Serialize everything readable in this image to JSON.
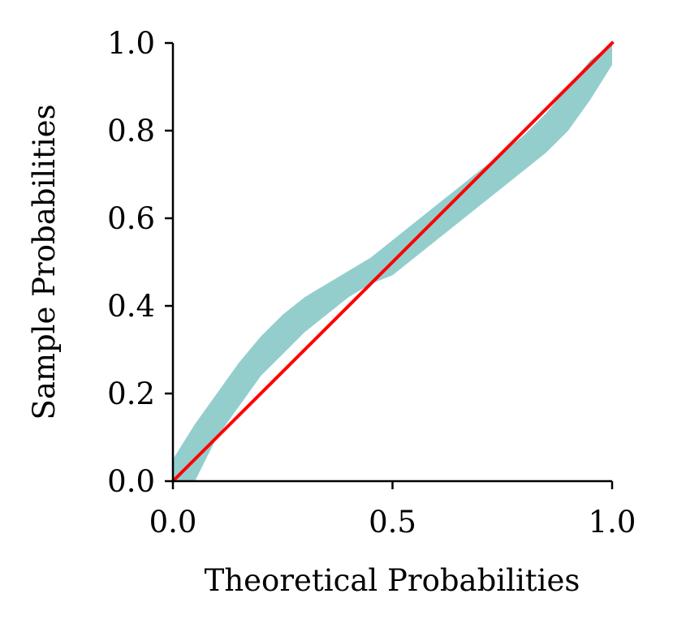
{
  "chart_data": {
    "type": "area",
    "xlabel": "Theoretical Probabilities",
    "ylabel": "Sample Probabilities",
    "xlim": [
      0.0,
      1.0
    ],
    "ylim": [
      0.0,
      1.0
    ],
    "xticks": [
      {
        "value": 0.0,
        "label": "0.0"
      },
      {
        "value": 0.5,
        "label": "0.5"
      },
      {
        "value": 1.0,
        "label": "1.0"
      }
    ],
    "yticks": [
      {
        "value": 0.0,
        "label": "0.0"
      },
      {
        "value": 0.2,
        "label": "0.2"
      },
      {
        "value": 0.4,
        "label": "0.4"
      },
      {
        "value": 0.6,
        "label": "0.6"
      },
      {
        "value": 0.8,
        "label": "0.8"
      },
      {
        "value": 1.0,
        "label": "1.0"
      }
    ],
    "grid": false,
    "series": [
      {
        "kind": "confidence-band",
        "color": "#93cecd",
        "x": [
          0.0,
          0.05,
          0.1,
          0.15,
          0.2,
          0.25,
          0.3,
          0.35,
          0.4,
          0.45,
          0.5,
          0.55,
          0.6,
          0.65,
          0.7,
          0.75,
          0.8,
          0.85,
          0.9,
          0.95,
          1.0
        ],
        "lower": [
          0.0,
          0.0,
          0.1,
          0.17,
          0.24,
          0.29,
          0.34,
          0.38,
          0.42,
          0.45,
          0.47,
          0.51,
          0.55,
          0.59,
          0.63,
          0.67,
          0.71,
          0.75,
          0.8,
          0.87,
          0.95
        ],
        "upper": [
          0.05,
          0.13,
          0.2,
          0.27,
          0.33,
          0.38,
          0.42,
          0.45,
          0.48,
          0.51,
          0.55,
          0.59,
          0.63,
          0.67,
          0.71,
          0.75,
          0.79,
          0.84,
          0.9,
          0.96,
          1.0
        ]
      },
      {
        "kind": "reference-line",
        "color": "#ff0000",
        "x": [
          0.0,
          1.0
        ],
        "y": [
          0.0,
          1.0
        ]
      }
    ]
  }
}
